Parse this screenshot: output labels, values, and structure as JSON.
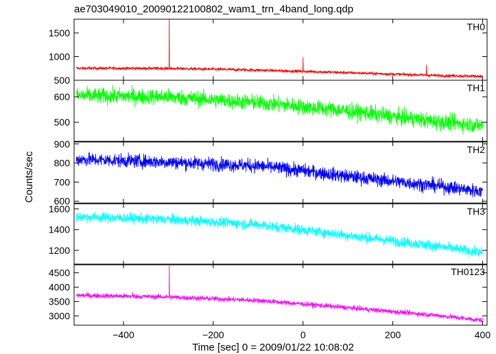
{
  "chart_data": {
    "type": "line",
    "title": "ae703049010_20090122100802_wam1_trn_4band_long.qdp",
    "xlabel": "Time [sec] 0 = 2009/01/22 10:08:02",
    "ylabel": "Counts/sec",
    "xlim": [
      -510,
      410
    ],
    "x_ticks": [
      -400,
      -200,
      0,
      200,
      400
    ],
    "x_tick_labels": [
      "−400",
      "−200",
      "0",
      "200",
      "400"
    ],
    "sample_step_sec": 0.5,
    "panels": [
      {
        "name": "TH0",
        "color": "#ff0000",
        "ylim": [
          500,
          1790
        ],
        "yticks": [
          500,
          1000,
          1500
        ],
        "ytick_labels": [
          "500",
          "1000",
          "1500"
        ],
        "trend": [
          [
            -505,
            755
          ],
          [
            -300,
            750
          ],
          [
            -100,
            715
          ],
          [
            100,
            660
          ],
          [
            300,
            600
          ],
          [
            400,
            585
          ]
        ],
        "noise": 22,
        "spikes": [
          {
            "x": -298,
            "y": 1790
          },
          {
            "x": 0,
            "y": 990
          },
          {
            "x": 275,
            "y": 830
          }
        ]
      },
      {
        "name": "TH1",
        "color": "#00ff00",
        "ylim": [
          425,
          665
        ],
        "yticks": [
          500,
          600
        ],
        "ytick_labels": [
          "500",
          "600"
        ],
        "trend": [
          [
            -505,
            605
          ],
          [
            -300,
            600
          ],
          [
            -100,
            577
          ],
          [
            100,
            545
          ],
          [
            300,
            502
          ],
          [
            400,
            488
          ]
        ],
        "noise": 22,
        "spikes": []
      },
      {
        "name": "TH2",
        "color": "#0000ff",
        "ylim": [
          590,
          910
        ],
        "yticks": [
          600,
          700,
          800,
          900
        ],
        "ytick_labels": [
          "600",
          "700",
          "800",
          "900"
        ],
        "trend": [
          [
            -505,
            820
          ],
          [
            -300,
            805
          ],
          [
            -100,
            785
          ],
          [
            0,
            760
          ],
          [
            100,
            730
          ],
          [
            300,
            680
          ],
          [
            400,
            650
          ]
        ],
        "noise": 25,
        "spikes": []
      },
      {
        "name": "TH3",
        "color": "#00ffff",
        "ylim": [
          1060,
          1650
        ],
        "yticks": [
          1200,
          1400,
          1600
        ],
        "ytick_labels": [
          "1200",
          "1400",
          "1600"
        ],
        "trend": [
          [
            -505,
            1525
          ],
          [
            -300,
            1500
          ],
          [
            -100,
            1450
          ],
          [
            100,
            1345
          ],
          [
            300,
            1240
          ],
          [
            400,
            1175
          ]
        ],
        "noise": 35,
        "spikes": []
      },
      {
        "name": "TH0123",
        "color": "#ff00ff",
        "ylim": [
          2680,
          4800
        ],
        "yticks": [
          3000,
          3500,
          4000,
          4500
        ],
        "ytick_labels": [
          "3000",
          "3500",
          "4000",
          "4500"
        ],
        "trend": [
          [
            -505,
            3720
          ],
          [
            -300,
            3660
          ],
          [
            -100,
            3540
          ],
          [
            100,
            3290
          ],
          [
            300,
            3020
          ],
          [
            400,
            2850
          ]
        ],
        "noise": 60,
        "spikes": [
          {
            "x": -298,
            "y": 4800
          },
          {
            "x": -380,
            "y": 3830
          }
        ]
      }
    ]
  }
}
